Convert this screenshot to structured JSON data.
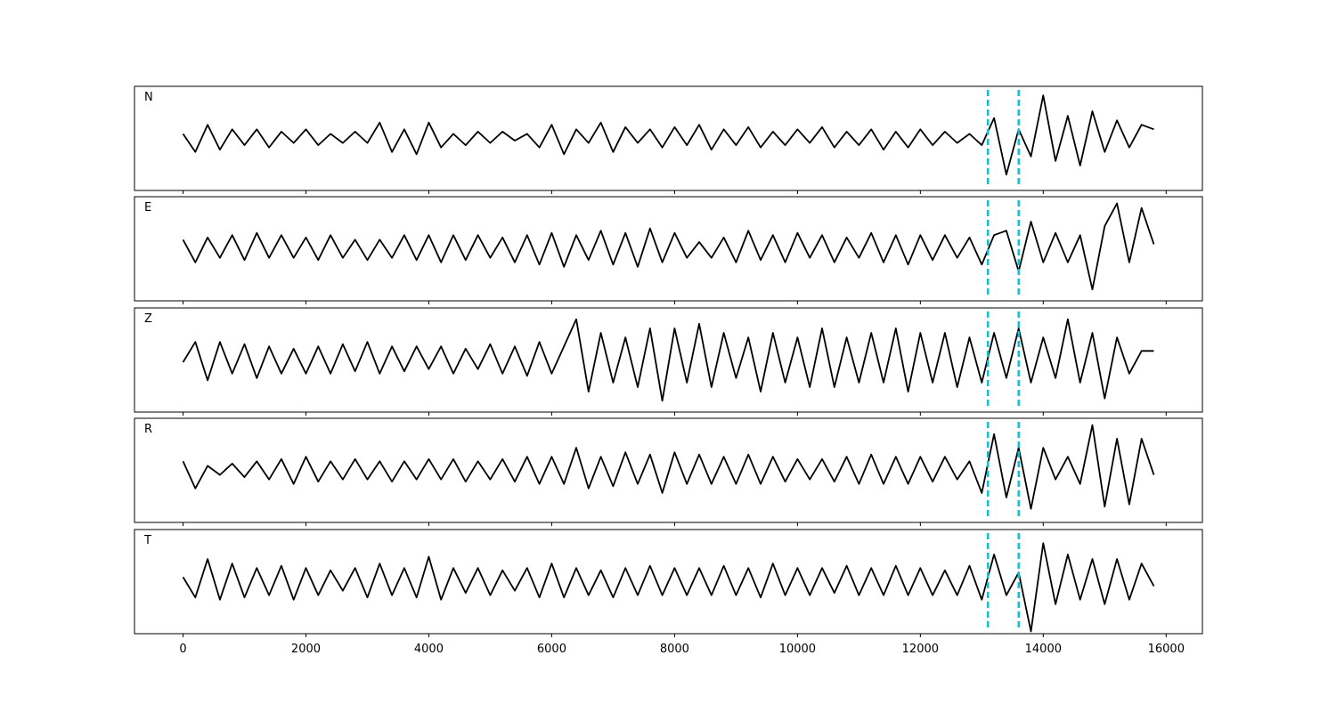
{
  "chart_data": {
    "type": "line",
    "x": [
      0,
      200,
      400,
      600,
      800,
      1000,
      1200,
      1400,
      1600,
      1800,
      2000,
      2200,
      2400,
      2600,
      2800,
      3000,
      3200,
      3400,
      3600,
      3800,
      4000,
      4200,
      4400,
      4600,
      4800,
      5000,
      5200,
      5400,
      5600,
      5800,
      6000,
      6200,
      6400,
      6600,
      6800,
      7000,
      7200,
      7400,
      7600,
      7800,
      8000,
      8200,
      8400,
      8600,
      8800,
      9000,
      9200,
      9400,
      9600,
      9800,
      10000,
      10200,
      10400,
      10600,
      10800,
      11000,
      11200,
      11400,
      11600,
      11800,
      12000,
      12200,
      12400,
      12600,
      12800,
      13000,
      13200,
      13400,
      13600,
      13800,
      14000,
      14200,
      14400,
      14600,
      14800,
      15000,
      15200,
      15400,
      15600,
      15800
    ],
    "series": [
      {
        "name": "N",
        "color": "#000000",
        "values": [
          0.1,
          -0.3,
          0.3,
          -0.25,
          0.2,
          -0.15,
          0.2,
          -0.2,
          0.15,
          -0.1,
          0.2,
          -0.15,
          0.1,
          -0.1,
          0.15,
          -0.1,
          0.35,
          -0.3,
          0.2,
          -0.35,
          0.35,
          -0.2,
          0.1,
          -0.15,
          0.15,
          -0.1,
          0.15,
          -0.05,
          0.1,
          -0.2,
          0.3,
          -0.35,
          0.2,
          -0.1,
          0.35,
          -0.3,
          0.25,
          -0.1,
          0.2,
          -0.2,
          0.25,
          -0.15,
          0.3,
          -0.25,
          0.2,
          -0.15,
          0.25,
          -0.2,
          0.15,
          -0.15,
          0.2,
          -0.1,
          0.25,
          -0.2,
          0.15,
          -0.15,
          0.2,
          -0.25,
          0.15,
          -0.2,
          0.2,
          -0.15,
          0.15,
          -0.1,
          0.1,
          -0.15,
          0.45,
          -0.8,
          0.2,
          -0.4,
          0.95,
          -0.5,
          0.5,
          -0.6,
          0.6,
          -0.3,
          0.4,
          -0.2,
          0.3,
          0.2
        ]
      },
      {
        "name": "E",
        "color": "#000000",
        "values": [
          0.2,
          -0.3,
          0.25,
          -0.2,
          0.3,
          -0.25,
          0.35,
          -0.2,
          0.3,
          -0.2,
          0.25,
          -0.25,
          0.3,
          -0.2,
          0.2,
          -0.25,
          0.2,
          -0.2,
          0.3,
          -0.25,
          0.3,
          -0.3,
          0.3,
          -0.25,
          0.3,
          -0.2,
          0.25,
          -0.3,
          0.3,
          -0.35,
          0.35,
          -0.4,
          0.3,
          -0.25,
          0.4,
          -0.35,
          0.35,
          -0.4,
          0.45,
          -0.3,
          0.35,
          -0.2,
          0.15,
          -0.2,
          0.25,
          -0.3,
          0.4,
          -0.25,
          0.3,
          -0.3,
          0.35,
          -0.2,
          0.3,
          -0.3,
          0.25,
          -0.2,
          0.35,
          -0.3,
          0.3,
          -0.35,
          0.3,
          -0.25,
          0.3,
          -0.2,
          0.25,
          -0.35,
          0.3,
          0.4,
          -0.5,
          0.6,
          -0.3,
          0.35,
          -0.3,
          0.3,
          -0.9,
          0.5,
          1.0,
          -0.3,
          0.9,
          0.1
        ]
      },
      {
        "name": "Z",
        "color": "#000000",
        "values": [
          -0.05,
          0.4,
          -0.45,
          0.4,
          -0.3,
          0.35,
          -0.4,
          0.3,
          -0.3,
          0.25,
          -0.3,
          0.3,
          -0.3,
          0.35,
          -0.25,
          0.4,
          -0.3,
          0.3,
          -0.25,
          0.3,
          -0.2,
          0.3,
          -0.3,
          0.25,
          -0.2,
          0.35,
          -0.3,
          0.3,
          -0.35,
          0.4,
          -0.3,
          0.3,
          0.9,
          -0.7,
          0.6,
          -0.5,
          0.5,
          -0.6,
          0.7,
          -0.9,
          0.7,
          -0.5,
          0.8,
          -0.6,
          0.6,
          -0.4,
          0.5,
          -0.7,
          0.6,
          -0.5,
          0.5,
          -0.6,
          0.7,
          -0.6,
          0.5,
          -0.5,
          0.6,
          -0.5,
          0.7,
          -0.7,
          0.6,
          -0.5,
          0.6,
          -0.6,
          0.5,
          -0.5,
          0.6,
          -0.4,
          0.7,
          -0.5,
          0.5,
          -0.4,
          0.9,
          -0.5,
          0.6,
          -0.85,
          0.5,
          -0.3,
          0.2,
          0.2
        ]
      },
      {
        "name": "R",
        "color": "#000000",
        "values": [
          0.2,
          -0.4,
          0.1,
          -0.1,
          0.15,
          -0.15,
          0.2,
          -0.2,
          0.25,
          -0.3,
          0.3,
          -0.25,
          0.2,
          -0.2,
          0.25,
          -0.2,
          0.2,
          -0.25,
          0.2,
          -0.2,
          0.25,
          -0.2,
          0.25,
          -0.25,
          0.2,
          -0.2,
          0.25,
          -0.25,
          0.3,
          -0.3,
          0.3,
          -0.3,
          0.5,
          -0.4,
          0.3,
          -0.35,
          0.4,
          -0.3,
          0.35,
          -0.5,
          0.4,
          -0.3,
          0.35,
          -0.3,
          0.3,
          -0.3,
          0.35,
          -0.3,
          0.3,
          -0.25,
          0.25,
          -0.2,
          0.25,
          -0.25,
          0.3,
          -0.3,
          0.35,
          -0.3,
          0.3,
          -0.3,
          0.3,
          -0.25,
          0.3,
          -0.2,
          0.2,
          -0.5,
          0.8,
          -0.6,
          0.5,
          -0.85,
          0.5,
          -0.2,
          0.3,
          -0.3,
          1.0,
          -0.8,
          0.7,
          -0.75,
          0.7,
          -0.1
        ]
      },
      {
        "name": "T",
        "color": "#000000",
        "values": [
          0.1,
          -0.35,
          0.5,
          -0.4,
          0.4,
          -0.35,
          0.3,
          -0.3,
          0.35,
          -0.4,
          0.3,
          -0.3,
          0.25,
          -0.2,
          0.3,
          -0.35,
          0.4,
          -0.3,
          0.3,
          -0.35,
          0.55,
          -0.4,
          0.3,
          -0.25,
          0.3,
          -0.3,
          0.25,
          -0.2,
          0.3,
          -0.35,
          0.4,
          -0.35,
          0.3,
          -0.3,
          0.25,
          -0.35,
          0.3,
          -0.3,
          0.35,
          -0.3,
          0.3,
          -0.3,
          0.3,
          -0.3,
          0.35,
          -0.3,
          0.3,
          -0.35,
          0.4,
          -0.3,
          0.3,
          -0.3,
          0.3,
          -0.25,
          0.35,
          -0.3,
          0.3,
          -0.3,
          0.35,
          -0.3,
          0.3,
          -0.3,
          0.25,
          -0.3,
          0.35,
          -0.4,
          0.6,
          -0.3,
          0.2,
          -1.1,
          0.85,
          -0.5,
          0.6,
          -0.4,
          0.5,
          -0.5,
          0.5,
          -0.4,
          0.4,
          -0.1
        ]
      }
    ],
    "vlines": {
      "x": [
        13100,
        13600
      ],
      "color": "#17becf"
    },
    "xlim": [
      -790,
      16590
    ],
    "xticks": [
      0,
      2000,
      4000,
      6000,
      8000,
      10000,
      12000,
      14000,
      16000
    ],
    "ylim": [
      -1.15,
      1.15
    ]
  }
}
